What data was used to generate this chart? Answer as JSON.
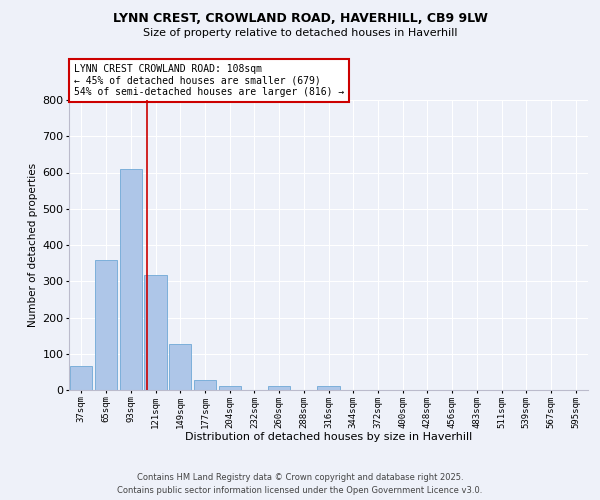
{
  "title_line1": "LYNN CREST, CROWLAND ROAD, HAVERHILL, CB9 9LW",
  "title_line2": "Size of property relative to detached houses in Haverhill",
  "xlabel": "Distribution of detached houses by size in Haverhill",
  "ylabel": "Number of detached properties",
  "bar_labels": [
    "37sqm",
    "65sqm",
    "93sqm",
    "121sqm",
    "149sqm",
    "177sqm",
    "204sqm",
    "232sqm",
    "260sqm",
    "288sqm",
    "316sqm",
    "344sqm",
    "372sqm",
    "400sqm",
    "428sqm",
    "456sqm",
    "483sqm",
    "511sqm",
    "539sqm",
    "567sqm",
    "595sqm"
  ],
  "bar_values": [
    65,
    360,
    610,
    318,
    128,
    28,
    10,
    0,
    10,
    0,
    10,
    0,
    0,
    0,
    0,
    0,
    0,
    0,
    0,
    0,
    0
  ],
  "bar_color": "#aec6e8",
  "bar_edgecolor": "#6fa8d6",
  "vline_x": 2.65,
  "vline_color": "#cc0000",
  "annotation_text": "LYNN CREST CROWLAND ROAD: 108sqm\n← 45% of detached houses are smaller (679)\n54% of semi-detached houses are larger (816) →",
  "annotation_box_edgecolor": "#cc0000",
  "ylim": [
    0,
    800
  ],
  "yticks": [
    0,
    100,
    200,
    300,
    400,
    500,
    600,
    700,
    800
  ],
  "footer_line1": "Contains HM Land Registry data © Crown copyright and database right 2025.",
  "footer_line2": "Contains public sector information licensed under the Open Government Licence v3.0.",
  "bg_color": "#eef1f9",
  "plot_bg_color": "#eef1f9"
}
